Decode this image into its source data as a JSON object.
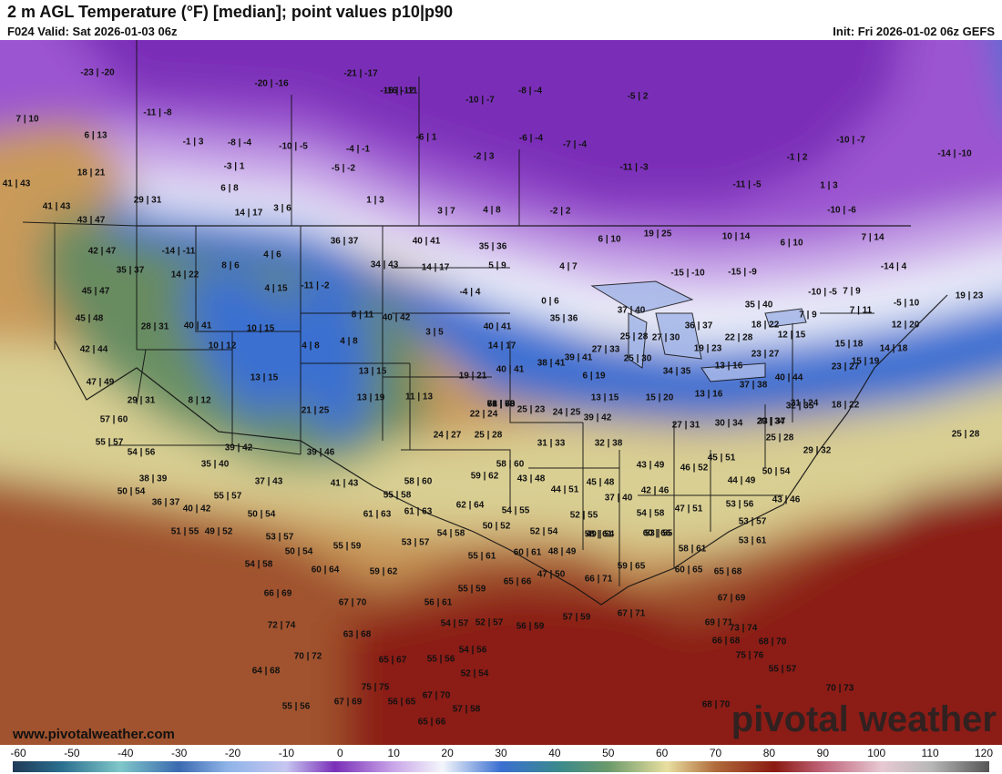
{
  "header": {
    "title": "2 m AGL Temperature (°F) [median]; point values p10|p90",
    "valid": "F024 Valid: Sat 2026-01-03 06z",
    "init": "Init: Fri 2026-01-02 06z GEFS"
  },
  "footer": {
    "website": "www.pivotalweather.com",
    "brand": "pivotal weather"
  },
  "colors": {
    "deep_purple": "#7a2fb8",
    "violet": "#9b55d0",
    "lavender": "#c9a6e8",
    "white": "#eef2fb",
    "blue": "#3a6fd1",
    "teal": "#3b8a8c",
    "green": "#5c8a60",
    "khaki": "#d9cf93",
    "tan": "#c99a5a",
    "brown": "#a0522d",
    "dark_red": "#8b1a12"
  },
  "colorbar": {
    "ticks": [
      "-60",
      "-50",
      "-40",
      "-30",
      "-20",
      "-10",
      "0",
      "10",
      "20",
      "30",
      "40",
      "50",
      "60",
      "70",
      "80",
      "90",
      "100",
      "110",
      "120"
    ]
  },
  "point_values": [
    "-23|-20",
    "7|10",
    "6|13",
    "-11|-8",
    "18|21",
    "41|43",
    "29|31",
    "41|43",
    "43|47",
    "42|47",
    "35|37",
    "45|47",
    "45|48",
    "42|44",
    "47|49",
    "29|31",
    "57|60",
    "55|57",
    "54|56",
    "-20|-16",
    "-21|-17",
    "-16|-12",
    "-16|-11",
    "-1|3",
    "-8|-4",
    "-10|-5",
    "-4|-1",
    "-3|1",
    "-5|-2",
    "6|8",
    "14|17",
    "3|6",
    "1|3",
    "-6|1",
    "-10|-7",
    "-8|-4",
    "-5|2",
    "-2|3",
    "-6|-4",
    "-7|-4",
    "-11|-3",
    "3|7",
    "4|8",
    "-2|2",
    "-11|-5",
    "-1|2",
    "1|3",
    "-10|-7",
    "-14|-10",
    "-10|-6",
    "7|14",
    "-14|-11",
    "14|22",
    "8|6",
    "4|6",
    "36|37",
    "40|41",
    "35|36",
    "34|43",
    "14|17",
    "5|9",
    "6|10",
    "19|25",
    "10|14",
    "6|10",
    "-14|4",
    "4|7",
    "-15|-10",
    "-15|-9",
    "-10|-5",
    "7|9",
    "4|15",
    "-11|-2",
    "-4|4",
    "0|6",
    "28|31",
    "40|41",
    "10|15",
    "8|11",
    "40|42",
    "40|41",
    "35|36",
    "37|40",
    "35|40",
    "18|22",
    "7|9",
    "7|11",
    "-5|10",
    "19|23",
    "12|20",
    "4|8",
    "4|8",
    "3|5",
    "14|17",
    "25|28",
    "36|37",
    "27|30",
    "22|28",
    "12|15",
    "15|18",
    "14|18",
    "10|12",
    "13|15",
    "13|15",
    "19|21",
    "40|41",
    "38|41",
    "39|41",
    "27|33",
    "25|30",
    "19|23",
    "23|27",
    "13|16",
    "23|27",
    "15|19",
    "8|12",
    "13|19",
    "11|13",
    "6|19",
    "34|35",
    "37|38",
    "40|44",
    "21|25",
    "15|20",
    "13|16",
    "13|15",
    "32|35",
    "21|24",
    "18|22",
    "25|28",
    "22|24",
    "25|23",
    "24|25",
    "39|42",
    "32|38",
    "29|34",
    "27|31",
    "30|34",
    "33|37",
    "25|28",
    "29|32",
    "24|27",
    "25|28",
    "31|33",
    "39|42",
    "39|46",
    "35|40",
    "37|43",
    "41|43",
    "38|39",
    "50|54",
    "36|37",
    "40|42",
    "55|57",
    "58|60",
    "59|62",
    "58|60",
    "55|58",
    "43|48",
    "44|51",
    "45|48",
    "43|49",
    "46|52",
    "45|51",
    "50|54",
    "44|49",
    "43|46",
    "37|40",
    "42|46",
    "47|51",
    "53|56",
    "51|55",
    "49|52",
    "50|54",
    "53|57",
    "61|63",
    "61|63",
    "62|64",
    "54|55",
    "52|55",
    "54|58",
    "49|54",
    "53|55",
    "53|57",
    "53|61",
    "50|54",
    "55|59",
    "53|57",
    "54|58",
    "50|52",
    "52|54",
    "58|61",
    "60|66",
    "58|61",
    "54|58",
    "60|64",
    "59|62",
    "55|61",
    "60|61",
    "48|49",
    "47|50",
    "66|71",
    "59|65",
    "60|65",
    "65|68",
    "66|69",
    "65|66",
    "56|61",
    "55|59",
    "67|69",
    "67|70",
    "63|68",
    "65|67",
    "55|56",
    "54|57",
    "52|57",
    "56|59",
    "57|59",
    "67|71",
    "69|71",
    "73|74",
    "72|74",
    "70|72",
    "64|68",
    "55|56",
    "67|69",
    "66|68",
    "68|70",
    "75|76",
    "75|75",
    "56|65",
    "67|70",
    "65|66",
    "54|56",
    "52|54",
    "57|58",
    "55|57",
    "70|73",
    "68|70",
    "62|63",
    "68|70",
    "71|73",
    "56|59"
  ]
}
